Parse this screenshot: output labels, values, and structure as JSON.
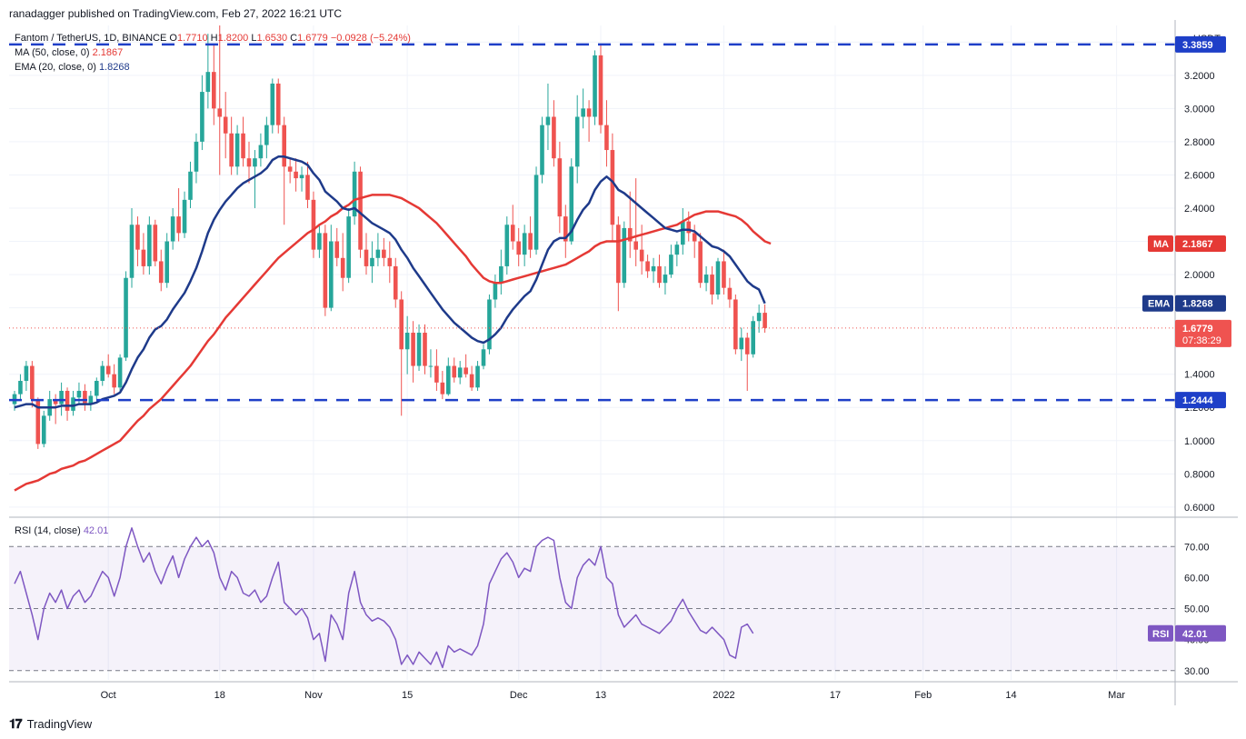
{
  "header": {
    "published_line": "ranadagger published on TradingView.com, Feb 27, 2022 16:21 UTC"
  },
  "legend": {
    "symbol": "Fantom / TetherUS, 1D, BINANCE",
    "open_label": "O",
    "open": "1.7710",
    "high_label": "H",
    "high": "1.8200",
    "low_label": "L",
    "low": "1.6530",
    "close_label": "C",
    "close": "1.6779",
    "change": "−0.0928 (−5.24%)",
    "ma_label": "MA (50, close, 0)",
    "ma_value": "2.1867",
    "ema_label": "EMA (20, close, 0)",
    "ema_value": "1.8268"
  },
  "rsi_legend": {
    "label": "RSI (14, close)",
    "value": "42.01"
  },
  "footer": {
    "brand": "TradingView"
  },
  "colors": {
    "up": "#26a69a",
    "down": "#ef5350",
    "ema": "#1e3a8a",
    "ma": "#e53935",
    "rsi": "#7e57c2",
    "level": "#1e3fc8"
  },
  "chart_data": {
    "type": "candlestick",
    "currency": "USDT",
    "y_ticks": [
      "3.4000",
      "3.2000",
      "3.0000",
      "2.8000",
      "2.6000",
      "2.4000",
      "2.2000",
      "2.0000",
      "1.8000",
      "1.4000",
      "1.2000",
      "1.0000",
      "0.8000",
      "0.6000"
    ],
    "x_ticks": [
      "Oct",
      "18",
      "Nov",
      "15",
      "Dec",
      "13",
      "2022",
      "17",
      "Feb",
      "14",
      "Mar"
    ],
    "ylim": [
      0.55,
      3.5
    ],
    "levels": [
      {
        "label": "3.3859",
        "value": 3.3859
      },
      {
        "label": "1.2444",
        "value": 1.2444
      }
    ],
    "tags": {
      "ma": {
        "label": "MA",
        "value": "2.1867"
      },
      "ema": {
        "label": "EMA",
        "value": "1.8268"
      },
      "price": {
        "value": "1.6779",
        "countdown": "07:38:29"
      }
    },
    "ohlc": [
      [
        1.22,
        1.3,
        1.18,
        1.28
      ],
      [
        1.28,
        1.4,
        1.24,
        1.36
      ],
      [
        1.36,
        1.48,
        1.3,
        1.45
      ],
      [
        1.45,
        1.48,
        1.2,
        1.25
      ],
      [
        1.25,
        1.26,
        0.95,
        0.98
      ],
      [
        0.98,
        1.18,
        0.96,
        1.15
      ],
      [
        1.15,
        1.3,
        1.12,
        1.25
      ],
      [
        1.25,
        1.28,
        1.1,
        1.22
      ],
      [
        1.22,
        1.35,
        1.15,
        1.3
      ],
      [
        1.3,
        1.32,
        1.12,
        1.18
      ],
      [
        1.18,
        1.3,
        1.15,
        1.26
      ],
      [
        1.26,
        1.35,
        1.22,
        1.3
      ],
      [
        1.3,
        1.34,
        1.18,
        1.22
      ],
      [
        1.22,
        1.3,
        1.18,
        1.27
      ],
      [
        1.27,
        1.38,
        1.25,
        1.36
      ],
      [
        1.36,
        1.48,
        1.33,
        1.45
      ],
      [
        1.45,
        1.52,
        1.38,
        1.4
      ],
      [
        1.4,
        1.46,
        1.28,
        1.32
      ],
      [
        1.32,
        1.52,
        1.3,
        1.5
      ],
      [
        1.5,
        2.02,
        1.48,
        1.98
      ],
      [
        1.98,
        2.4,
        1.92,
        2.3
      ],
      [
        2.3,
        2.35,
        2.05,
        2.15
      ],
      [
        2.15,
        2.25,
        2.0,
        2.05
      ],
      [
        2.05,
        2.35,
        2.0,
        2.3
      ],
      [
        2.3,
        2.33,
        2.05,
        2.08
      ],
      [
        2.08,
        2.15,
        1.9,
        1.95
      ],
      [
        1.95,
        2.25,
        1.92,
        2.2
      ],
      [
        2.2,
        2.4,
        2.15,
        2.35
      ],
      [
        2.35,
        2.52,
        2.2,
        2.25
      ],
      [
        2.25,
        2.5,
        2.22,
        2.45
      ],
      [
        2.45,
        2.68,
        2.4,
        2.62
      ],
      [
        2.62,
        2.85,
        2.55,
        2.8
      ],
      [
        2.8,
        3.2,
        2.75,
        3.1
      ],
      [
        3.1,
        3.45,
        3.0,
        3.22
      ],
      [
        3.22,
        3.38,
        2.9,
        3.0
      ],
      [
        3.0,
        3.5,
        2.6,
        2.95
      ],
      [
        2.95,
        3.1,
        2.7,
        2.85
      ],
      [
        2.85,
        2.95,
        2.6,
        2.65
      ],
      [
        2.65,
        2.9,
        2.6,
        2.85
      ],
      [
        2.85,
        2.95,
        2.65,
        2.7
      ],
      [
        2.7,
        2.8,
        2.55,
        2.65
      ],
      [
        2.65,
        2.75,
        2.4,
        2.7
      ],
      [
        2.7,
        2.85,
        2.65,
        2.78
      ],
      [
        2.78,
        2.95,
        2.7,
        2.9
      ],
      [
        2.9,
        3.18,
        2.85,
        3.15
      ],
      [
        3.15,
        3.18,
        2.85,
        2.9
      ],
      [
        2.9,
        2.95,
        2.3,
        2.65
      ],
      [
        2.65,
        2.7,
        2.55,
        2.62
      ],
      [
        2.62,
        2.7,
        2.5,
        2.58
      ],
      [
        2.58,
        2.65,
        2.5,
        2.6
      ],
      [
        2.6,
        2.68,
        2.4,
        2.45
      ],
      [
        2.45,
        2.5,
        2.1,
        2.15
      ],
      [
        2.15,
        2.3,
        2.1,
        2.25
      ],
      [
        2.25,
        2.3,
        1.75,
        1.8
      ],
      [
        1.8,
        2.3,
        1.78,
        2.2
      ],
      [
        2.2,
        2.28,
        2.05,
        2.1
      ],
      [
        2.1,
        2.25,
        1.9,
        1.98
      ],
      [
        1.98,
        2.4,
        1.95,
        2.35
      ],
      [
        2.35,
        2.68,
        2.3,
        2.62
      ],
      [
        2.62,
        2.65,
        2.1,
        2.15
      ],
      [
        2.15,
        2.25,
        2.0,
        2.05
      ],
      [
        2.05,
        2.2,
        1.95,
        2.1
      ],
      [
        2.1,
        2.25,
        2.05,
        2.15
      ],
      [
        2.15,
        2.22,
        2.05,
        2.1
      ],
      [
        2.1,
        2.2,
        1.95,
        2.05
      ],
      [
        2.05,
        2.1,
        1.8,
        1.85
      ],
      [
        1.85,
        1.9,
        1.15,
        1.55
      ],
      [
        1.55,
        1.75,
        1.4,
        1.65
      ],
      [
        1.65,
        1.72,
        1.35,
        1.45
      ],
      [
        1.45,
        1.7,
        1.42,
        1.65
      ],
      [
        1.65,
        1.7,
        1.4,
        1.45
      ],
      [
        1.45,
        1.55,
        1.38,
        1.45
      ],
      [
        1.45,
        1.55,
        1.3,
        1.35
      ],
      [
        1.35,
        1.42,
        1.25,
        1.28
      ],
      [
        1.28,
        1.5,
        1.27,
        1.45
      ],
      [
        1.45,
        1.5,
        1.35,
        1.38
      ],
      [
        1.38,
        1.48,
        1.34,
        1.44
      ],
      [
        1.44,
        1.52,
        1.38,
        1.4
      ],
      [
        1.4,
        1.45,
        1.3,
        1.32
      ],
      [
        1.32,
        1.48,
        1.3,
        1.45
      ],
      [
        1.45,
        1.58,
        1.43,
        1.55
      ],
      [
        1.55,
        1.88,
        1.52,
        1.85
      ],
      [
        1.85,
        2.0,
        1.8,
        1.95
      ],
      [
        1.95,
        2.15,
        1.88,
        2.05
      ],
      [
        2.05,
        2.35,
        2.0,
        2.3
      ],
      [
        2.3,
        2.42,
        2.15,
        2.2
      ],
      [
        2.2,
        2.28,
        2.05,
        2.12
      ],
      [
        2.12,
        2.3,
        2.05,
        2.25
      ],
      [
        2.25,
        2.35,
        2.1,
        2.15
      ],
      [
        2.15,
        2.65,
        2.12,
        2.6
      ],
      [
        2.6,
        2.95,
        2.55,
        2.9
      ],
      [
        2.9,
        3.15,
        2.75,
        2.95
      ],
      [
        2.95,
        3.05,
        2.65,
        2.7
      ],
      [
        2.7,
        2.8,
        2.25,
        2.35
      ],
      [
        2.35,
        2.42,
        2.1,
        2.2
      ],
      [
        2.2,
        2.7,
        2.18,
        2.65
      ],
      [
        2.65,
        3.08,
        2.55,
        2.95
      ],
      [
        2.95,
        3.12,
        2.88,
        3.0
      ],
      [
        3.0,
        3.05,
        2.8,
        2.95
      ],
      [
        2.95,
        3.35,
        2.9,
        3.32
      ],
      [
        3.32,
        3.38,
        2.85,
        2.9
      ],
      [
        2.9,
        3.05,
        2.65,
        2.75
      ],
      [
        2.75,
        2.85,
        2.2,
        2.3
      ],
      [
        2.3,
        2.35,
        1.78,
        1.95
      ],
      [
        1.95,
        2.32,
        1.92,
        2.28
      ],
      [
        2.28,
        2.5,
        2.1,
        2.2
      ],
      [
        2.2,
        2.58,
        2.05,
        2.15
      ],
      [
        2.15,
        2.3,
        2.0,
        2.08
      ],
      [
        2.08,
        2.12,
        1.98,
        2.02
      ],
      [
        2.02,
        2.1,
        1.95,
        2.05
      ],
      [
        2.05,
        2.12,
        1.92,
        1.95
      ],
      [
        1.95,
        2.05,
        1.88,
        2.0
      ],
      [
        2.0,
        2.18,
        1.98,
        2.12
      ],
      [
        2.12,
        2.2,
        2.05,
        2.18
      ],
      [
        2.18,
        2.4,
        2.12,
        2.32
      ],
      [
        2.32,
        2.38,
        2.2,
        2.25
      ],
      [
        2.25,
        2.3,
        2.1,
        2.2
      ],
      [
        2.2,
        2.25,
        1.92,
        1.95
      ],
      [
        1.95,
        2.05,
        1.9,
        2.0
      ],
      [
        2.0,
        2.05,
        1.82,
        1.88
      ],
      [
        1.88,
        2.1,
        1.85,
        2.08
      ],
      [
        2.08,
        2.15,
        1.88,
        1.92
      ],
      [
        1.92,
        1.98,
        1.8,
        1.85
      ],
      [
        1.85,
        1.88,
        1.52,
        1.55
      ],
      [
        1.55,
        1.68,
        1.48,
        1.62
      ],
      [
        1.62,
        1.65,
        1.3,
        1.52
      ],
      [
        1.52,
        1.75,
        1.5,
        1.72
      ],
      [
        1.72,
        1.82,
        1.65,
        1.77
      ],
      [
        1.77,
        1.82,
        1.65,
        1.678
      ]
    ],
    "ema20": [
      1.2,
      1.21,
      1.22,
      1.22,
      1.2,
      1.2,
      1.2,
      1.2,
      1.21,
      1.21,
      1.21,
      1.22,
      1.22,
      1.22,
      1.23,
      1.25,
      1.26,
      1.27,
      1.29,
      1.35,
      1.43,
      1.5,
      1.55,
      1.62,
      1.67,
      1.69,
      1.73,
      1.79,
      1.84,
      1.89,
      1.96,
      2.04,
      2.14,
      2.25,
      2.33,
      2.39,
      2.44,
      2.48,
      2.52,
      2.55,
      2.57,
      2.59,
      2.61,
      2.64,
      2.69,
      2.71,
      2.71,
      2.7,
      2.69,
      2.68,
      2.66,
      2.61,
      2.57,
      2.5,
      2.47,
      2.44,
      2.4,
      2.39,
      2.4,
      2.37,
      2.34,
      2.31,
      2.29,
      2.27,
      2.25,
      2.21,
      2.15,
      2.1,
      2.04,
      1.99,
      1.94,
      1.89,
      1.84,
      1.79,
      1.75,
      1.71,
      1.68,
      1.65,
      1.62,
      1.6,
      1.59,
      1.61,
      1.64,
      1.68,
      1.74,
      1.79,
      1.83,
      1.87,
      1.9,
      1.97,
      2.06,
      2.15,
      2.2,
      2.22,
      2.22,
      2.26,
      2.33,
      2.39,
      2.43,
      2.51,
      2.56,
      2.59,
      2.56,
      2.51,
      2.49,
      2.46,
      2.43,
      2.4,
      2.37,
      2.34,
      2.31,
      2.28,
      2.27,
      2.26,
      2.27,
      2.27,
      2.26,
      2.23,
      2.2,
      2.17,
      2.16,
      2.14,
      2.11,
      2.06,
      2.01,
      1.96,
      1.93,
      1.91,
      1.8268
    ],
    "ma50": [
      0.7,
      0.72,
      0.74,
      0.75,
      0.76,
      0.78,
      0.8,
      0.81,
      0.83,
      0.84,
      0.85,
      0.87,
      0.88,
      0.9,
      0.92,
      0.94,
      0.96,
      0.98,
      1.0,
      1.04,
      1.08,
      1.12,
      1.15,
      1.19,
      1.22,
      1.25,
      1.29,
      1.33,
      1.37,
      1.41,
      1.45,
      1.5,
      1.55,
      1.6,
      1.64,
      1.69,
      1.74,
      1.78,
      1.82,
      1.86,
      1.9,
      1.94,
      1.98,
      2.02,
      2.06,
      2.1,
      2.13,
      2.16,
      2.19,
      2.22,
      2.25,
      2.27,
      2.3,
      2.32,
      2.35,
      2.37,
      2.4,
      2.42,
      2.45,
      2.46,
      2.47,
      2.48,
      2.48,
      2.48,
      2.48,
      2.47,
      2.46,
      2.44,
      2.42,
      2.4,
      2.37,
      2.34,
      2.31,
      2.27,
      2.23,
      2.19,
      2.15,
      2.11,
      2.06,
      2.02,
      1.98,
      1.96,
      1.95,
      1.95,
      1.96,
      1.97,
      1.98,
      1.99,
      2.0,
      2.01,
      2.02,
      2.03,
      2.04,
      2.05,
      2.06,
      2.08,
      2.1,
      2.12,
      2.14,
      2.17,
      2.19,
      2.2,
      2.2,
      2.2,
      2.21,
      2.22,
      2.23,
      2.24,
      2.25,
      2.26,
      2.27,
      2.28,
      2.29,
      2.3,
      2.32,
      2.34,
      2.36,
      2.37,
      2.38,
      2.38,
      2.38,
      2.37,
      2.36,
      2.35,
      2.33,
      2.3,
      2.26,
      2.23,
      2.2,
      2.1867
    ],
    "rsi": [
      58,
      62,
      55,
      48,
      40,
      50,
      55,
      52,
      56,
      50,
      54,
      56,
      52,
      54,
      58,
      62,
      60,
      54,
      60,
      70,
      76,
      70,
      65,
      68,
      62,
      58,
      63,
      67,
      60,
      66,
      70,
      73,
      70,
      72,
      68,
      60,
      56,
      62,
      60,
      55,
      54,
      56,
      52,
      54,
      60,
      65,
      52,
      50,
      48,
      50,
      47,
      40,
      42,
      33,
      48,
      45,
      40,
      55,
      62,
      52,
      48,
      46,
      47,
      46,
      44,
      40,
      32,
      35,
      32,
      36,
      34,
      32,
      36,
      31,
      38,
      36,
      37,
      36,
      35,
      38,
      45,
      58,
      62,
      66,
      68,
      65,
      60,
      63,
      62,
      70,
      72,
      73,
      72,
      60,
      52,
      50,
      60,
      64,
      66,
      64,
      70,
      60,
      58,
      48,
      44,
      46,
      48,
      45,
      44,
      43,
      42,
      44,
      46,
      50,
      53,
      49,
      46,
      43,
      42,
      44,
      42,
      40,
      35,
      34,
      44,
      45,
      42.01
    ],
    "rsi_ticks": [
      "70.00",
      "60.00",
      "50.00",
      "40.00",
      "30.00"
    ],
    "rsi_lim": [
      27,
      78
    ]
  }
}
